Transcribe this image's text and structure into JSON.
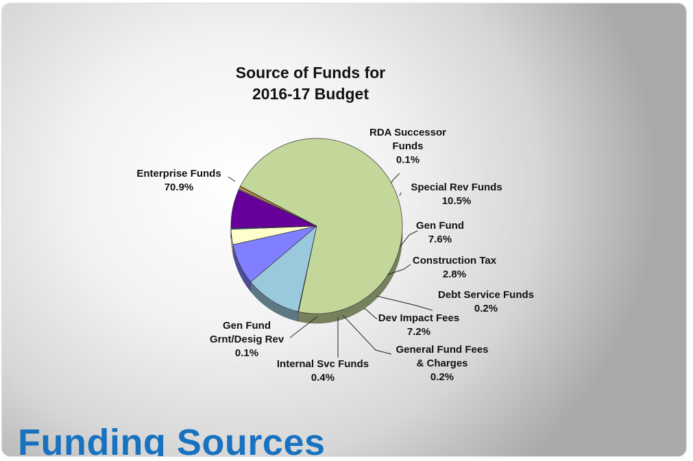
{
  "slide": {
    "title": "Funding Sources",
    "colors": {
      "title": "#1872c0",
      "background": "#e6e6e6"
    }
  },
  "chart_data": {
    "type": "pie",
    "title": [
      "Source of Funds for",
      "2016-17 Budget"
    ],
    "slices": [
      {
        "label": [
          "Enterprise Funds",
          "70.9%"
        ],
        "value": 70.9,
        "color": "#c4d79b"
      },
      {
        "label": [
          "RDA Successor",
          "Funds",
          "0.1%"
        ],
        "value": 0.1,
        "color": "#e3b6b6"
      },
      {
        "label": [
          "Special Rev Funds",
          "10.5%"
        ],
        "value": 10.5,
        "color": "#9ac8dd"
      },
      {
        "label": [
          "Gen Fund",
          "7.6%"
        ],
        "value": 7.6,
        "color": "#7f7fff"
      },
      {
        "label": [
          "Construction Tax",
          "2.8%"
        ],
        "value": 2.8,
        "color": "#ffffcc"
      },
      {
        "label": [
          "Debt Service Funds",
          "0.2%"
        ],
        "value": 0.2,
        "color": "#2b5a8c"
      },
      {
        "label": [
          "Dev Impact Fees",
          "7.2%"
        ],
        "value": 7.2,
        "color": "#660099"
      },
      {
        "label": [
          "General Fund Fees",
          "& Charges",
          "0.2%"
        ],
        "value": 0.2,
        "color": "#b0b8d8"
      },
      {
        "label": [
          "Internal Svc Funds",
          "0.4%"
        ],
        "value": 0.4,
        "color": "#e4a23a"
      },
      {
        "label": [
          "Gen Fund",
          "Grnt/Desig Rev",
          "0.1%"
        ],
        "value": 0.1,
        "color": "#d06060"
      }
    ]
  }
}
